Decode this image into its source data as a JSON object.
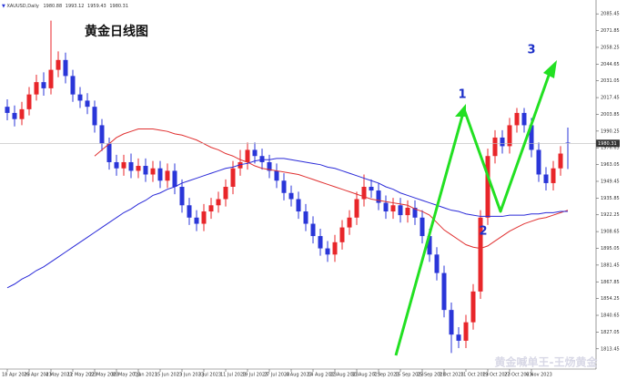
{
  "chart_data": {
    "type": "candlestick",
    "title": "黄金日线图",
    "symbol": "XAUUSD,Daily",
    "categories": [
      "18 Apr 2023",
      null,
      null,
      "26 Apr 2023",
      null,
      null,
      "4 May 2023",
      null,
      null,
      "12 May 2023",
      null,
      null,
      "22 May 2023",
      null,
      null,
      "30 May 2023",
      null,
      null,
      "7 Jun 2023",
      null,
      null,
      "15 Jun 2023",
      null,
      null,
      "23 Jun 2023",
      null,
      null,
      "3 Jul 2023",
      null,
      null,
      "11 Jul 2023",
      null,
      null,
      "19 Jul 2023",
      null,
      null,
      "27 Jul 2023",
      null,
      null,
      "4 Aug 2023",
      null,
      null,
      "14 Aug 2023",
      null,
      null,
      "22 Aug 2023",
      null,
      null,
      "30 Aug 2023",
      null,
      null,
      "7 Sep 2023",
      null,
      null,
      "15 Sep 2023",
      null,
      null,
      "25 Sep 2023",
      null,
      null,
      "3 Oct 2023",
      null,
      null,
      "11 Oct 2023",
      null,
      null,
      "19 Oct 2023",
      null,
      null,
      "27 Oct 2023",
      null,
      null,
      "6 Nov 2023",
      null,
      null,
      null,
      null,
      null
    ],
    "open": [
      2010,
      2005,
      2000,
      2008,
      2020,
      2030,
      2025,
      2040,
      2048,
      2035,
      2020,
      2015,
      2010,
      1995,
      1980,
      1965,
      1960,
      1965,
      1958,
      1962,
      1955,
      1960,
      1950,
      1958,
      1945,
      1930,
      1920,
      1915,
      1925,
      1930,
      1935,
      1945,
      1960,
      1965,
      1975,
      1970,
      1965,
      1958,
      1950,
      1940,
      1935,
      1925,
      1915,
      1905,
      1895,
      1890,
      1900,
      1912,
      1920,
      1935,
      1945,
      1942,
      1932,
      1925,
      1930,
      1922,
      1928,
      1920,
      1905,
      1890,
      1875,
      1845,
      1825,
      1820,
      1835,
      1860,
      1920,
      1970,
      1985,
      1978,
      1995,
      2005,
      1995,
      1975,
      1955,
      1948,
      1960,
      1980.88
    ],
    "high": [
      2016,
      2011,
      2014,
      2026,
      2036,
      2038,
      2080,
      2055,
      2054,
      2040,
      2026,
      2021,
      2015,
      2000,
      1985,
      1971,
      1971,
      1972,
      1968,
      1968,
      1966,
      1966,
      1964,
      1964,
      1951,
      1936,
      1926,
      1931,
      1936,
      1941,
      1951,
      1966,
      1975,
      1981,
      1981,
      1976,
      1971,
      1964,
      1956,
      1946,
      1941,
      1931,
      1921,
      1911,
      1901,
      1906,
      1918,
      1926,
      1941,
      1955,
      1951,
      1948,
      1938,
      1936,
      1936,
      1934,
      1934,
      1926,
      1911,
      1896,
      1881,
      1851,
      1831,
      1841,
      1866,
      1926,
      1976,
      1991,
      1991,
      2001,
      2009,
      2009,
      2001,
      1981,
      1961,
      1966,
      1978,
      1993.12
    ],
    "low": [
      1999,
      1994,
      1995,
      2003,
      2015,
      2019,
      2020,
      2034,
      2029,
      2014,
      2009,
      2004,
      1989,
      1974,
      1959,
      1954,
      1954,
      1952,
      1952,
      1949,
      1949,
      1944,
      1944,
      1939,
      1924,
      1914,
      1909,
      1909,
      1919,
      1924,
      1929,
      1939,
      1954,
      1959,
      1964,
      1959,
      1952,
      1944,
      1934,
      1929,
      1919,
      1909,
      1899,
      1889,
      1884,
      1884,
      1894,
      1906,
      1914,
      1929,
      1936,
      1926,
      1919,
      1919,
      1916,
      1916,
      1914,
      1899,
      1884,
      1869,
      1839,
      1810,
      1814,
      1814,
      1829,
      1854,
      1914,
      1964,
      1972,
      1972,
      1989,
      1989,
      1969,
      1949,
      1942,
      1942,
      1954,
      1959.43
    ],
    "close": [
      2005,
      2000,
      2008,
      2020,
      2030,
      2025,
      2040,
      2048,
      2035,
      2020,
      2015,
      2010,
      1995,
      1980,
      1965,
      1960,
      1965,
      1958,
      1962,
      1955,
      1960,
      1950,
      1958,
      1945,
      1930,
      1920,
      1915,
      1925,
      1930,
      1935,
      1945,
      1960,
      1965,
      1975,
      1970,
      1965,
      1958,
      1950,
      1940,
      1935,
      1925,
      1915,
      1905,
      1895,
      1890,
      1900,
      1912,
      1920,
      1935,
      1945,
      1942,
      1932,
      1925,
      1930,
      1922,
      1928,
      1920,
      1905,
      1890,
      1875,
      1845,
      1825,
      1820,
      1835,
      1860,
      1920,
      1970,
      1985,
      1978,
      1995,
      2005,
      1995,
      1975,
      1955,
      1948,
      1960,
      1972,
      1980.31
    ],
    "up_color": "#e8262a",
    "down_color": "#2a36d8",
    "moving_averages": [
      {
        "color": "#e03030",
        "values": [
          null,
          null,
          null,
          null,
          null,
          null,
          null,
          null,
          null,
          null,
          null,
          null,
          1970,
          1975,
          1980,
          1985,
          1988,
          1990,
          1992,
          1992,
          1992,
          1991,
          1990,
          1988,
          1987,
          1985,
          1983,
          1980,
          1977,
          1975,
          1972,
          1970,
          1967,
          1965,
          1962,
          1960,
          1959,
          1958,
          1957,
          1956,
          1955,
          1953,
          1951,
          1949,
          1947,
          1945,
          1943,
          1941,
          1939,
          1937,
          1935,
          1934,
          1933,
          1932,
          1931,
          1930,
          1927,
          1925,
          1922,
          1916,
          1910,
          1906,
          1902,
          1898,
          1896,
          1895,
          1897,
          1901,
          1905,
          1909,
          1912,
          1915,
          1917,
          1919,
          1920,
          1922,
          1924,
          1926
        ]
      },
      {
        "color": "#2a2ad8",
        "values": [
          1863,
          1866,
          1870,
          1873,
          1877,
          1880,
          1884,
          1888,
          1892,
          1896,
          1900,
          1904,
          1908,
          1912,
          1916,
          1920,
          1924,
          1927,
          1931,
          1934,
          1938,
          1940,
          1943,
          1945,
          1948,
          1950,
          1952,
          1954,
          1956,
          1958,
          1960,
          1961,
          1963,
          1964,
          1966,
          1967,
          1967,
          1968,
          1968,
          1967,
          1966,
          1965,
          1964,
          1963,
          1961,
          1960,
          1958,
          1956,
          1954,
          1952,
          1950,
          1948,
          1945,
          1943,
          1940,
          1938,
          1936,
          1934,
          1932,
          1930,
          1928,
          1926,
          1925,
          1923,
          1922,
          1921,
          1921,
          1921,
          1921,
          1922,
          1922,
          1922,
          1923,
          1923,
          1924,
          1924,
          1925,
          1925
        ]
      }
    ],
    "ylim": [
      1797,
      2093
    ],
    "yticks": [
      2085.45,
      2071.85,
      2058.25,
      2044.65,
      2031.05,
      2017.45,
      2003.85,
      1990.25,
      1976.65,
      1963.05,
      1949.45,
      1935.85,
      1922.25,
      1908.65,
      1895.05,
      1881.45,
      1867.85,
      1854.25,
      1840.65,
      1827.05,
      1813.45
    ],
    "annotations": [
      "1",
      "2",
      "3"
    ],
    "watermark": "黄金喊单王-王炀黄金"
  }
}
